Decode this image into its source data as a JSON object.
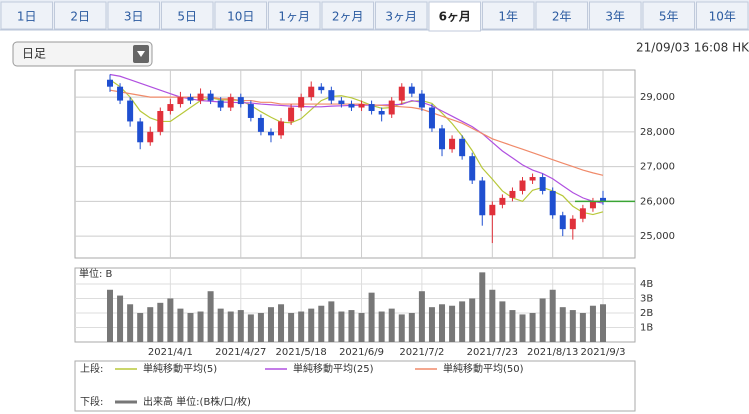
{
  "tabs": [
    "1日",
    "2日",
    "3日",
    "5日",
    "10日",
    "1ヶ月",
    "2ヶ月",
    "3ヶ月",
    "6ヶ月",
    "1年",
    "2年",
    "3年",
    "5年",
    "10年"
  ],
  "active_tab": 8,
  "dropdown": "日足",
  "timestamp": "21/09/03 16:08 HK",
  "chart_data": {
    "type": "candlestick",
    "categories": [
      null,
      null,
      null,
      null,
      null,
      null,
      "2021/4/1",
      null,
      null,
      null,
      null,
      null,
      null,
      "2021/4/27",
      null,
      null,
      null,
      null,
      null,
      "2021/5/18",
      null,
      null,
      null,
      null,
      null,
      "2021/6/9",
      null,
      null,
      null,
      null,
      null,
      "2021/7/2",
      null,
      null,
      null,
      null,
      null,
      null,
      "2021/7/23",
      null,
      null,
      null,
      null,
      null,
      "2021/8/13",
      null,
      null,
      null,
      null,
      "2021/9/3"
    ],
    "open": [
      29500,
      29300,
      28900,
      28300,
      27700,
      28000,
      28600,
      28800,
      29000,
      28900,
      29100,
      28900,
      28700,
      29000,
      28800,
      28400,
      28000,
      27900,
      28300,
      28700,
      29000,
      29300,
      29200,
      28900,
      28800,
      28700,
      28800,
      28600,
      28500,
      28900,
      29300,
      29100,
      28700,
      28100,
      27500,
      27800,
      27300,
      26600,
      25600,
      25900,
      26100,
      26300,
      26600,
      26700,
      26300,
      25600,
      25200,
      25500,
      25800,
      26100
    ],
    "high": [
      29650,
      29400,
      29000,
      28400,
      28150,
      28700,
      28950,
      29150,
      29100,
      29250,
      29200,
      29000,
      29100,
      29100,
      28900,
      28500,
      28100,
      28400,
      28800,
      29100,
      29450,
      29400,
      29300,
      29000,
      28900,
      28900,
      28900,
      28700,
      29000,
      29400,
      29400,
      29200,
      28800,
      28200,
      27900,
      27900,
      27400,
      26700,
      26000,
      26200,
      26400,
      26700,
      26800,
      26800,
      26400,
      25700,
      25600,
      25900,
      26100,
      26300
    ],
    "low": [
      29150,
      28800,
      28150,
      27500,
      27600,
      27900,
      28500,
      28700,
      28800,
      28800,
      28800,
      28600,
      28600,
      28700,
      28300,
      27900,
      27700,
      27800,
      28200,
      28600,
      28900,
      29100,
      28800,
      28700,
      28600,
      28600,
      28500,
      28300,
      28400,
      28800,
      29000,
      28600,
      28000,
      27300,
      27400,
      27200,
      26500,
      25300,
      24800,
      25800,
      26000,
      26200,
      26500,
      26200,
      25500,
      25000,
      24900,
      25400,
      25700,
      25900
    ],
    "close": [
      29300,
      28900,
      28300,
      27700,
      28000,
      28600,
      28800,
      29000,
      28900,
      29100,
      28900,
      28700,
      29000,
      28800,
      28400,
      28000,
      27900,
      28300,
      28700,
      29000,
      29300,
      29200,
      28900,
      28800,
      28700,
      28800,
      28600,
      28500,
      28900,
      29300,
      29100,
      28700,
      28100,
      27500,
      27800,
      27300,
      26600,
      25600,
      25900,
      26100,
      26300,
      26600,
      26700,
      26300,
      25600,
      25200,
      25500,
      25800,
      26000,
      26000
    ],
    "up_color": "#e0303a",
    "down_color": "#1f4fd0",
    "last_color": "#3aa534",
    "ylim": [
      24370,
      29780
    ],
    "yticks": [
      {
        "value": 25000,
        "label": "25,000"
      },
      {
        "value": 26000,
        "label": "26,000"
      },
      {
        "value": 27000,
        "label": "27,000"
      },
      {
        "value": 28000,
        "label": "28,000"
      },
      {
        "value": 29000,
        "label": "29,000"
      }
    ],
    "series": [
      {
        "name": "単純移動平均(5)",
        "color": "#b8c83a",
        "values": [
          29500,
          29300,
          29000,
          28600,
          28400,
          28300,
          28300,
          28500,
          28700,
          28900,
          28980,
          28920,
          28920,
          28900,
          28760,
          28580,
          28420,
          28280,
          28260,
          28380,
          28640,
          28900,
          29020,
          29040,
          28980,
          28880,
          28760,
          28680,
          28700,
          28820,
          28880,
          28900,
          28820,
          28540,
          28240,
          27880,
          27460,
          26960,
          26640,
          26300,
          26100,
          26000,
          26320,
          26400,
          26300,
          26160,
          25860,
          25680,
          25620,
          25700
        ]
      },
      {
        "name": "単純移動平均(25)",
        "color": "#b050e0",
        "values": [
          29650,
          29600,
          29500,
          29400,
          29300,
          29200,
          29100,
          29000,
          28950,
          28900,
          28880,
          28860,
          28850,
          28840,
          28830,
          28800,
          28780,
          28760,
          28740,
          28730,
          28720,
          28720,
          28740,
          28750,
          28760,
          28770,
          28770,
          28770,
          28780,
          28790,
          28900,
          28850,
          28750,
          28600,
          28450,
          28300,
          28150,
          27950,
          27700,
          27450,
          27250,
          27050,
          26900,
          26800,
          26650,
          26450,
          26250,
          26100,
          26000,
          25950
        ]
      },
      {
        "name": "単純移動平均(50)",
        "color": "#f08a6a",
        "values": [
          29200,
          29150,
          29100,
          29050,
          29000,
          29000,
          29000,
          29000,
          29000,
          29000,
          29000,
          28950,
          28950,
          28900,
          28900,
          28850,
          28850,
          28800,
          28800,
          28800,
          28800,
          28800,
          28800,
          28800,
          28800,
          28800,
          28780,
          28760,
          28740,
          28720,
          28700,
          28650,
          28550,
          28450,
          28350,
          28250,
          28100,
          27950,
          27800,
          27700,
          27600,
          27500,
          27400,
          27300,
          27200,
          27100,
          27000,
          26900,
          26820,
          26750
        ]
      }
    ],
    "upper_label": "上段:",
    "lower_label": "下段:",
    "volume": {
      "unit_label": "単位: B",
      "name": "出来高 単位:(B株/口/枚)",
      "color": "#777777",
      "values": [
        3.6,
        3.2,
        2.6,
        2.0,
        2.4,
        2.7,
        3.0,
        2.3,
        2.0,
        2.1,
        3.5,
        2.3,
        2.1,
        2.2,
        1.9,
        2.0,
        2.4,
        2.6,
        2.0,
        2.1,
        2.3,
        2.5,
        2.8,
        2.1,
        2.2,
        2.0,
        3.4,
        2.1,
        2.3,
        1.9,
        2.0,
        3.5,
        2.4,
        2.6,
        2.5,
        2.8,
        3.0,
        4.8,
        3.6,
        2.8,
        2.2,
        1.9,
        2.0,
        3.0,
        3.6,
        2.4,
        2.2,
        2.0,
        2.5,
        2.6
      ],
      "ylim": [
        0,
        5.1
      ],
      "yticks": [
        {
          "value": 1,
          "label": "1B"
        },
        {
          "value": 2,
          "label": "2B"
        },
        {
          "value": 3,
          "label": "3B"
        },
        {
          "value": 4,
          "label": "4B"
        }
      ]
    }
  }
}
